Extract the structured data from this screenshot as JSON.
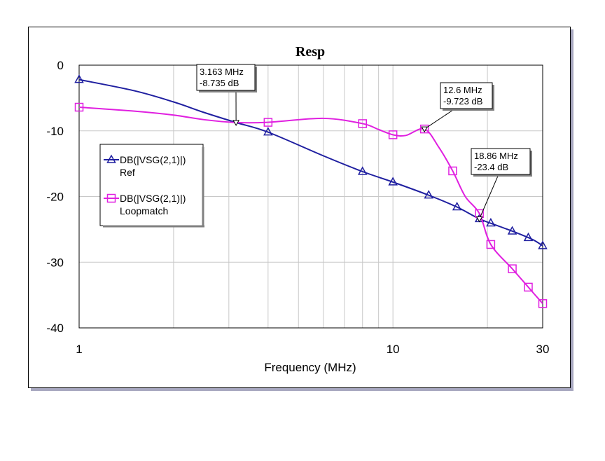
{
  "chart_data": {
    "type": "line",
    "title": "Resp",
    "xlabel": "Frequency (MHz)",
    "ylabel": "",
    "xscale": "log",
    "xlim": [
      1,
      30
    ],
    "ylim": [
      -40,
      0
    ],
    "x_ticks": [
      {
        "value": 1,
        "label": "1"
      },
      {
        "value": 10,
        "label": "10"
      },
      {
        "value": 30,
        "label": "30"
      }
    ],
    "y_ticks": [
      {
        "value": 0,
        "label": "0"
      },
      {
        "value": -10,
        "label": "-10"
      },
      {
        "value": -20,
        "label": "-20"
      },
      {
        "value": -30,
        "label": "-30"
      },
      {
        "value": -40,
        "label": "-40"
      }
    ],
    "grid": true,
    "legend_position": "left",
    "series": [
      {
        "name": "DB(|VSG(2,1)|)",
        "subname": "Ref",
        "color": "#1f1fa0",
        "marker": "triangle",
        "points": [
          [
            1,
            -2.2
          ],
          [
            1.5,
            -3.9
          ],
          [
            2,
            -5.6
          ],
          [
            2.5,
            -7.2
          ],
          [
            3.163,
            -8.735
          ],
          [
            4,
            -10.2
          ],
          [
            6,
            -13.8
          ],
          [
            8,
            -16.2
          ],
          [
            10,
            -17.8
          ],
          [
            13,
            -19.8
          ],
          [
            16,
            -21.6
          ],
          [
            18.86,
            -23.4
          ],
          [
            22,
            -24.6
          ],
          [
            25,
            -25.6
          ],
          [
            28,
            -26.6
          ],
          [
            30,
            -27.5
          ]
        ],
        "markers_x": [
          1,
          4,
          8,
          10,
          13,
          16,
          18.86,
          20.5,
          24,
          27,
          30
        ]
      },
      {
        "name": "DB(|VSG(2,1)|)",
        "subname": "Loopmatch",
        "color": "#e020e0",
        "marker": "square",
        "points": [
          [
            1,
            -6.4
          ],
          [
            1.5,
            -7.0
          ],
          [
            2,
            -7.6
          ],
          [
            2.5,
            -8.3
          ],
          [
            3.163,
            -8.735
          ],
          [
            4,
            -8.7
          ],
          [
            6,
            -8.1
          ],
          [
            8,
            -8.9
          ],
          [
            9,
            -9.8
          ],
          [
            10,
            -10.6
          ],
          [
            11,
            -10.7
          ],
          [
            12.6,
            -9.72
          ],
          [
            14,
            -12.5
          ],
          [
            15.5,
            -16.1
          ],
          [
            17,
            -20.0
          ],
          [
            18.86,
            -22.6
          ],
          [
            20.5,
            -27.3
          ],
          [
            24,
            -31.0
          ],
          [
            27,
            -33.8
          ],
          [
            30,
            -36.3
          ]
        ],
        "markers_x": [
          1,
          4,
          8,
          10,
          12.6,
          15.5,
          18.86,
          20.5,
          24,
          27,
          30
        ]
      }
    ],
    "annotations": [
      {
        "x": 3.163,
        "y": -8.735,
        "line1": "3.163 MHz",
        "line2": "-8.735 dB"
      },
      {
        "x": 12.6,
        "y": -9.723,
        "line1": "12.6 MHz",
        "line2": "-9.723 dB"
      },
      {
        "x": 18.86,
        "y": -23.4,
        "line1": "18.86 MHz",
        "line2": "-23.4 dB"
      }
    ]
  }
}
